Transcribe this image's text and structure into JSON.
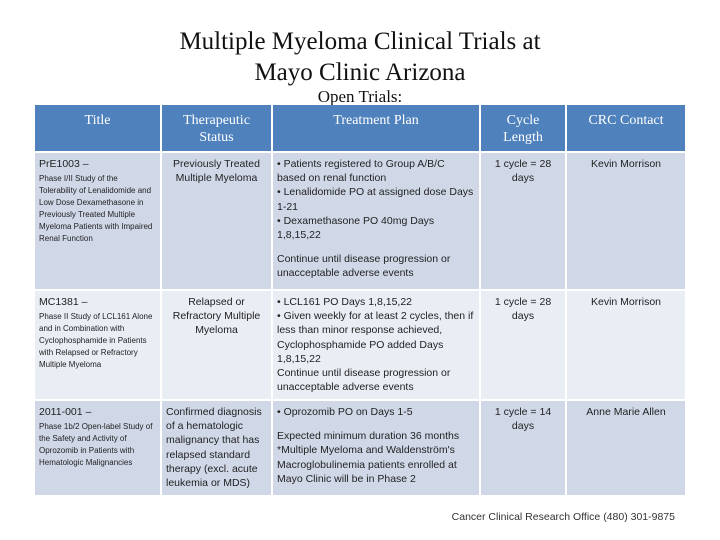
{
  "title": {
    "line1": "Multiple Myeloma Clinical Trials at",
    "line2": "Mayo Clinic Arizona"
  },
  "subtitle": "Open Trials:",
  "table": {
    "headers": {
      "title": "Title",
      "status_line1": "Therapeutic",
      "status_line2": "Status",
      "plan": "Treatment Plan",
      "cycle_line1": "Cycle",
      "cycle_line2": "Length",
      "contact": "CRC Contact"
    },
    "rows": [
      {
        "id": "PrE1003 –",
        "desc": "Phase I/II Study of the Tolerability of Lenalidomide and Low Dose Dexamethasone in Previously Treated Multiple Myeloma Patients with Impaired Renal Function",
        "status": "Previously Treated Multiple Myeloma",
        "plan": {
          "l1": "• Patients registered to Group A/B/C based on renal function",
          "l2": "• Lenalidomide PO at assigned dose Days 1-21",
          "l3": "• Dexamethasone PO 40mg Days 1,8,15,22",
          "l4": "Continue until disease progression or unacceptable adverse events"
        },
        "cycle": "1 cycle = 28 days",
        "contact": "Kevin Morrison"
      },
      {
        "id": "MC1381 –",
        "desc": "Phase II Study of LCL161 Alone and in Combination with Cyclophosphamide in Patients with Relapsed or Refractory Multiple Myeloma",
        "status": "Relapsed or Refractory Multiple Myeloma",
        "plan": {
          "l1": "• LCL161 PO Days 1,8,15,22",
          "l2": "• Given weekly for at least 2 cycles, then if less than minor response achieved, Cyclophosphamide PO added Days 1,8,15,22",
          "l3": "Continue until disease progression or unacceptable adverse events"
        },
        "cycle": "1 cycle = 28 days",
        "contact": "Kevin Morrison"
      },
      {
        "id": "2011-001 –",
        "desc": "Phase 1b/2 Open-label Study of the Safety and Activity of Oprozomib in Patients with Hematologic Malignancies",
        "status": "Confirmed diagnosis of a hematologic malignancy that has relapsed standard therapy (excl. acute leukemia or MDS)",
        "plan": {
          "l1": "• Oprozomib PO on Days 1-5",
          "l2": "Expected minimum duration 36 months *Multiple Myeloma and Waldenström's Macroglobulinemia patients enrolled at Mayo Clinic will be in Phase 2"
        },
        "cycle": "1 cycle = 14 days",
        "contact": "Anne Marie Allen"
      }
    ]
  },
  "footer": "Cancer Clinical Research Office (480) 301-9875",
  "colors": {
    "header_bg": "#4f81bd",
    "row_band_dark": "#d0d8e8",
    "row_band_light": "#e9edf4"
  }
}
